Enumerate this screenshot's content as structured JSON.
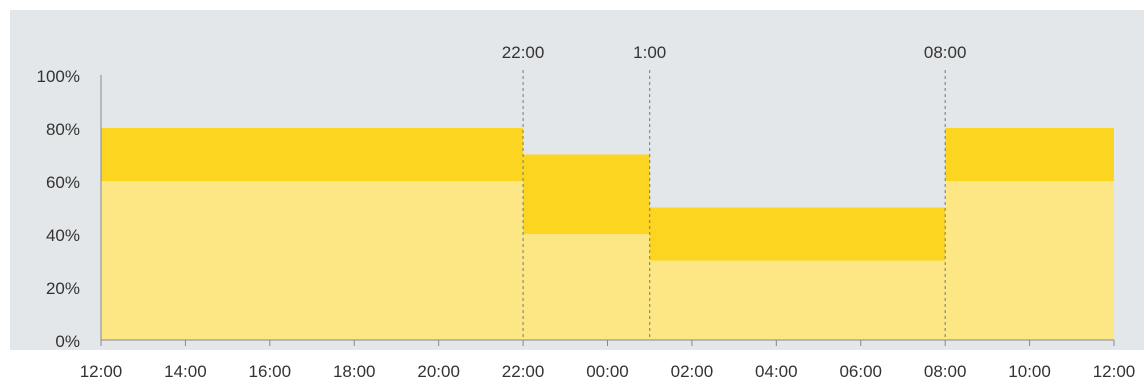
{
  "chart_data": {
    "type": "area",
    "title": "",
    "xlabel": "",
    "ylabel": "",
    "ylim": [
      0,
      100
    ],
    "y_ticks": [
      "0%",
      "20%",
      "40%",
      "60%",
      "80%",
      "100%"
    ],
    "y_tick_values": [
      0,
      20,
      40,
      60,
      80,
      100
    ],
    "x_ticks": [
      "12:00",
      "14:00",
      "16:00",
      "18:00",
      "20:00",
      "22:00",
      "00:00",
      "02:00",
      "04:00",
      "06:00",
      "08:00",
      "10:00",
      "12:00"
    ],
    "x_range_hours": [
      0,
      24
    ],
    "step_markers": [
      {
        "label": "22:00",
        "hour": 10
      },
      {
        "label": "1:00",
        "hour": 13
      },
      {
        "label": "08:00",
        "hour": 20
      }
    ],
    "segments": [
      {
        "start_hour": 0,
        "end_hour": 10,
        "lower": 60,
        "upper": 80
      },
      {
        "start_hour": 10,
        "end_hour": 13,
        "lower": 40,
        "upper": 70
      },
      {
        "start_hour": 13,
        "end_hour": 20,
        "lower": 30,
        "upper": 50
      },
      {
        "start_hour": 20,
        "end_hour": 24,
        "lower": 60,
        "upper": 80
      }
    ],
    "colors": {
      "background": "#e3e7ea",
      "lower_band": "#fce784",
      "upper_band": "#fcd520",
      "axis": "#888888",
      "marker_line": "#777777"
    },
    "grid": false
  }
}
